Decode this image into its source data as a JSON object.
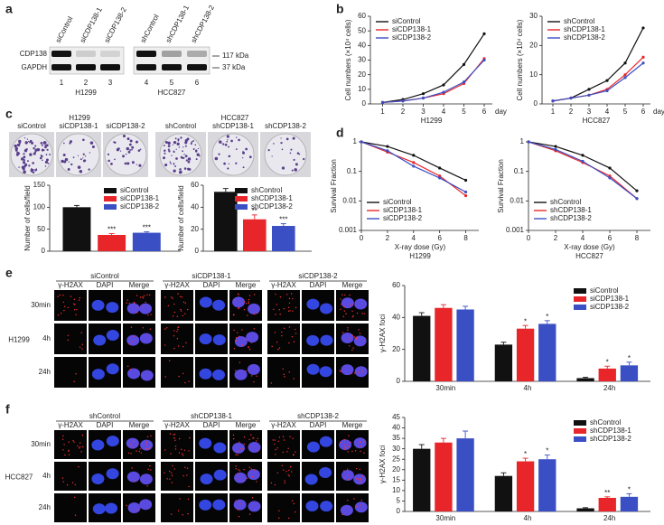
{
  "panels": [
    "a",
    "b",
    "c",
    "d",
    "e",
    "f"
  ],
  "blot": {
    "lanes": [
      "siControl",
      "siCDP138-1",
      "siCDP138-2",
      "shControl",
      "shCDP138-1",
      "shCDP138-2"
    ],
    "lane_numbers": [
      "1",
      "2",
      "3",
      "4",
      "5",
      "6"
    ],
    "proteins": [
      "CDP138",
      "GAPDH"
    ],
    "markers": [
      "117 kDa",
      "37  kDa"
    ],
    "cell_lines": [
      "H1299",
      "HCC827"
    ]
  },
  "colony": {
    "cell_lines": [
      "H1299",
      "HCC827"
    ],
    "labels": [
      [
        "siControl",
        "siCDP138-1",
        "siCDP138-2"
      ],
      [
        "shControl",
        "shCDP138-1",
        "shCDP138-2"
      ]
    ]
  },
  "micro_e": {
    "groups": [
      "siControl",
      "siCDP138-1",
      "siCDP138-2"
    ],
    "columns": [
      "γ-H2AX",
      "DAPI",
      "Merge"
    ],
    "rows": [
      "30min",
      "4h",
      "24h"
    ],
    "cell_line": "H1299"
  },
  "micro_f": {
    "groups": [
      "shControl",
      "shCDP138-1",
      "shCDP138-2"
    ],
    "columns": [
      "γ-H2AX",
      "DAPI",
      "Merge"
    ],
    "rows": [
      "30min",
      "4h",
      "24h"
    ],
    "cell_line": "HCC827"
  },
  "chart_data": [
    {
      "type": "line",
      "subtitle": "H1299",
      "ylabel": "Cell numbers (×10⁴ cells)",
      "xunit": "day",
      "x": [
        1,
        2,
        3,
        4,
        5,
        6
      ],
      "xlim": [
        0.4,
        6.4
      ],
      "xticks": [
        1,
        2,
        3,
        4,
        5,
        6
      ],
      "ylim": [
        0,
        60
      ],
      "yticks": [
        0,
        10,
        20,
        30,
        40,
        50,
        60
      ],
      "legend": "upper left",
      "series": [
        {
          "name": "siControl",
          "color": "#111111",
          "values": [
            1,
            3,
            7,
            13,
            27,
            48
          ]
        },
        {
          "name": "siCDP138-1",
          "color": "#e8262a",
          "values": [
            1,
            2,
            4,
            7,
            14,
            31
          ]
        },
        {
          "name": "siCDP138-2",
          "color": "#3b4fc4",
          "values": [
            1,
            2,
            4,
            8,
            15,
            30
          ]
        }
      ]
    },
    {
      "type": "line",
      "subtitle": "HCC827",
      "ylabel": "Cell numbers (×10⁴ cells)",
      "xunit": "day",
      "x": [
        1,
        2,
        3,
        4,
        5,
        6
      ],
      "xlim": [
        0.4,
        6.4
      ],
      "xticks": [
        1,
        2,
        3,
        4,
        5,
        6
      ],
      "ylim": [
        0,
        30
      ],
      "yticks": [
        0,
        10,
        20,
        30
      ],
      "legend": "upper left",
      "series": [
        {
          "name": "shControl",
          "color": "#111111",
          "values": [
            1,
            2,
            5,
            8,
            14,
            26
          ]
        },
        {
          "name": "shCDP138-1",
          "color": "#e8262a",
          "values": [
            1,
            2,
            3,
            5,
            10,
            16
          ]
        },
        {
          "name": "shCDP138-2",
          "color": "#3b4fc4",
          "values": [
            1,
            2,
            3,
            4.5,
            9,
            14
          ]
        }
      ]
    },
    {
      "type": "line",
      "log_scale": true,
      "subtitle": "H1299",
      "ylabel": "Survival Fraction",
      "xlabel": "X-ray dose  (Gy)",
      "x": [
        0,
        2,
        4,
        6,
        8
      ],
      "xlim": [
        0,
        9
      ],
      "xticks": [
        0,
        2,
        4,
        6,
        8
      ],
      "ylim": [
        0.001,
        1
      ],
      "yticks": [
        0.001,
        0.01,
        0.1,
        1
      ],
      "legend": "lower left",
      "series": [
        {
          "name": "siControl",
          "color": "#111111",
          "values": [
            1,
            0.7,
            0.35,
            0.13,
            0.05
          ]
        },
        {
          "name": "siCDP138-1",
          "color": "#e8262a",
          "values": [
            1,
            0.45,
            0.2,
            0.07,
            0.015
          ]
        },
        {
          "name": "siCDP138-2",
          "color": "#3b4fc4",
          "values": [
            1,
            0.5,
            0.15,
            0.06,
            0.02
          ]
        }
      ]
    },
    {
      "type": "line",
      "log_scale": true,
      "subtitle": "HCC827",
      "ylabel": "Survival Fraction",
      "xlabel": "X-ray dose  (Gy)",
      "x": [
        0,
        2,
        4,
        6,
        8
      ],
      "xlim": [
        0,
        9
      ],
      "xticks": [
        0,
        2,
        4,
        6,
        8
      ],
      "ylim": [
        0.001,
        1
      ],
      "yticks": [
        0.001,
        0.01,
        0.1,
        1
      ],
      "legend": "lower left",
      "series": [
        {
          "name": "shControl",
          "color": "#111111",
          "values": [
            1,
            0.7,
            0.35,
            0.13,
            0.022
          ]
        },
        {
          "name": "shCDP138-1",
          "color": "#e8262a",
          "values": [
            1,
            0.5,
            0.2,
            0.07,
            0.012
          ]
        },
        {
          "name": "shCDP138-2",
          "color": "#3b4fc4",
          "values": [
            1,
            0.55,
            0.22,
            0.06,
            0.012
          ]
        }
      ]
    },
    {
      "type": "bar",
      "ylabel": "Number of cells/field",
      "categories": [
        null
      ],
      "ylim": [
        0,
        150
      ],
      "yticks": [
        0,
        50,
        100,
        150
      ],
      "legend": "upper right",
      "series": [
        {
          "name": "siControl",
          "color": "#111111",
          "values": [
            100
          ],
          "errors": [
            4
          ],
          "significance": [
            null
          ]
        },
        {
          "name": "siCDP138-1",
          "color": "#e8262a",
          "values": [
            37
          ],
          "errors": [
            3
          ],
          "significance": [
            "***"
          ]
        },
        {
          "name": "siCDP138-2",
          "color": "#3b4fc4",
          "values": [
            42
          ],
          "errors": [
            2
          ],
          "significance": [
            "***"
          ]
        }
      ]
    },
    {
      "type": "bar",
      "ylabel": "Number of cells/field",
      "categories": [
        null
      ],
      "ylim": [
        0,
        60
      ],
      "yticks": [
        0,
        20,
        40,
        60
      ],
      "legend": "upper right",
      "series": [
        {
          "name": "shControl",
          "color": "#111111",
          "values": [
            54
          ],
          "errors": [
            3
          ],
          "significance": [
            null
          ]
        },
        {
          "name": "shCDP138-1",
          "color": "#e8262a",
          "values": [
            29
          ],
          "errors": [
            4
          ],
          "significance": [
            "**"
          ]
        },
        {
          "name": "shCDP138-2",
          "color": "#3b4fc4",
          "values": [
            23
          ],
          "errors": [
            2
          ],
          "significance": [
            "***"
          ]
        }
      ]
    },
    {
      "type": "bar",
      "ylabel": "γ-H2AX  foci",
      "categories": [
        "30min",
        "4h",
        "24h"
      ],
      "ylim": [
        0,
        60
      ],
      "yticks": [
        0,
        20,
        40,
        60
      ],
      "legend": "upper right",
      "series": [
        {
          "name": "siControl",
          "color": "#111111",
          "values": [
            41,
            23,
            2
          ],
          "errors": [
            2,
            1.5,
            0.5
          ],
          "significance": [
            null,
            null,
            null
          ]
        },
        {
          "name": "siCDP138-1",
          "color": "#e8262a",
          "values": [
            46,
            33,
            8
          ],
          "errors": [
            2,
            2,
            1.5
          ],
          "significance": [
            null,
            "*",
            "*"
          ]
        },
        {
          "name": "siCDP138-2",
          "color": "#3b4fc4",
          "values": [
            45,
            36,
            10
          ],
          "errors": [
            2,
            2,
            2
          ],
          "significance": [
            null,
            "*",
            "*"
          ]
        }
      ]
    },
    {
      "type": "bar",
      "ylabel": "γ-H2AX  foci",
      "categories": [
        "30min",
        "4h",
        "24h"
      ],
      "ylim": [
        0,
        45
      ],
      "yticks": [
        0,
        5,
        10,
        15,
        20,
        25,
        30,
        35,
        40,
        45
      ],
      "legend": "upper right",
      "series": [
        {
          "name": "shControl",
          "color": "#111111",
          "values": [
            30,
            17,
            1.5
          ],
          "errors": [
            2,
            1.5,
            0.3
          ],
          "significance": [
            null,
            null,
            null
          ]
        },
        {
          "name": "shCDP138-1",
          "color": "#e8262a",
          "values": [
            33,
            24,
            6.5
          ],
          "errors": [
            2,
            1.5,
            0.5
          ],
          "significance": [
            null,
            "*",
            "**"
          ]
        },
        {
          "name": "shCDP138-2",
          "color": "#3b4fc4",
          "values": [
            35,
            25,
            7
          ],
          "errors": [
            3.5,
            2,
            1.5
          ],
          "significance": [
            null,
            "*",
            "*"
          ]
        }
      ]
    }
  ]
}
